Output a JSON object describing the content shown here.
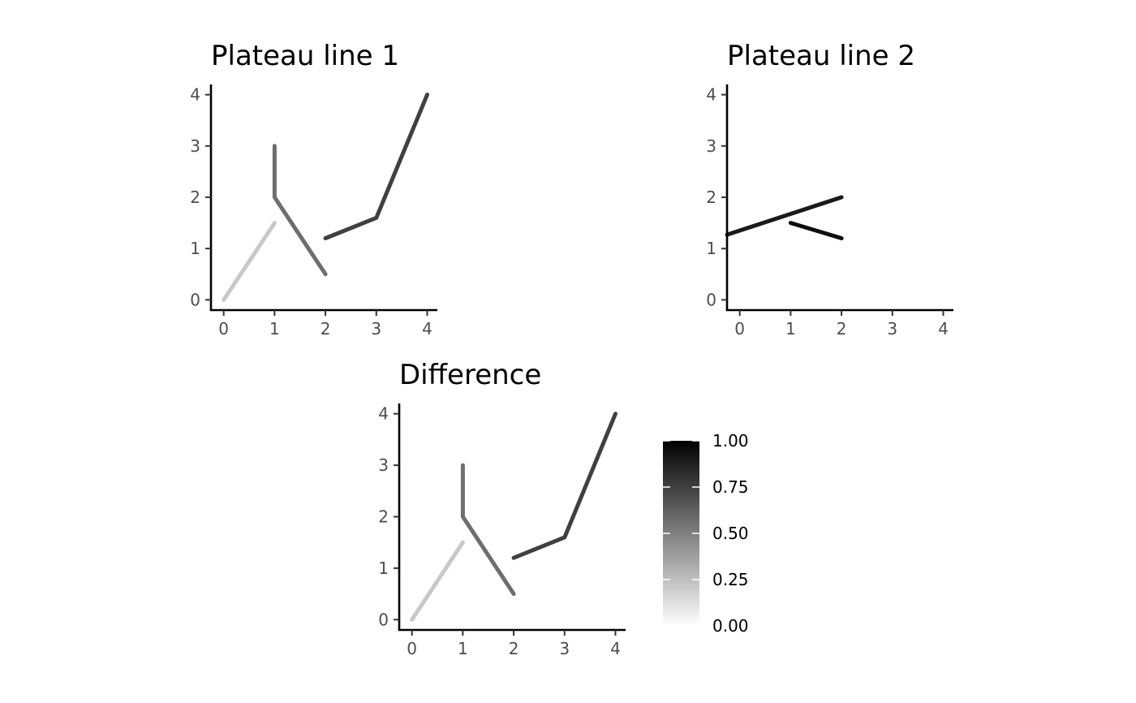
{
  "chart_data": [
    {
      "type": "line",
      "title": "Plateau line 1",
      "xlabel": "",
      "ylabel": "",
      "xlim": [
        -0.25,
        4.2
      ],
      "ylim": [
        -0.2,
        4.2
      ],
      "x_ticks": [
        "0",
        "1",
        "2",
        "3",
        "4"
      ],
      "y_ticks": [
        "0",
        "1",
        "2",
        "3",
        "4"
      ],
      "grid": false,
      "series": [
        {
          "value": 0.2,
          "color": "#c8c8c8",
          "points": [
            [
              0,
              0
            ],
            [
              1,
              1.5
            ]
          ]
        },
        {
          "value": 0.55,
          "color": "#6e6e6e",
          "points": [
            [
              1,
              3
            ],
            [
              1,
              2
            ],
            [
              2,
              0.5
            ]
          ]
        },
        {
          "value": 0.8,
          "color": "#404040",
          "points": [
            [
              2,
              1.2
            ],
            [
              3,
              1.6
            ],
            [
              4,
              4
            ]
          ]
        }
      ]
    },
    {
      "type": "line",
      "title": "Plateau line 2",
      "xlabel": "",
      "ylabel": "",
      "xlim": [
        -0.25,
        4.2
      ],
      "ylim": [
        -0.2,
        4.2
      ],
      "x_ticks": [
        "0",
        "1",
        "2",
        "3",
        "4"
      ],
      "y_ticks": [
        "0",
        "1",
        "2",
        "3",
        "4"
      ],
      "grid": false,
      "series": [
        {
          "value": 0.9,
          "color": "#1a1a1a",
          "points": [
            [
              -0.25,
              1.27
            ],
            [
              2,
              2
            ]
          ]
        },
        {
          "value": 1.0,
          "color": "#0d0d0d",
          "points": [
            [
              1,
              1.5
            ],
            [
              2,
              1.2
            ]
          ]
        }
      ]
    },
    {
      "type": "line",
      "title": "Difference",
      "xlabel": "",
      "ylabel": "",
      "xlim": [
        -0.25,
        4.2
      ],
      "ylim": [
        -0.2,
        4.2
      ],
      "x_ticks": [
        "0",
        "1",
        "2",
        "3",
        "4"
      ],
      "y_ticks": [
        "0",
        "1",
        "2",
        "3",
        "4"
      ],
      "grid": false,
      "series": [
        {
          "value": 0.2,
          "color": "#c8c8c8",
          "points": [
            [
              0,
              0
            ],
            [
              1,
              1.5
            ]
          ]
        },
        {
          "value": 0.55,
          "color": "#6e6e6e",
          "points": [
            [
              1,
              3
            ],
            [
              1,
              2
            ],
            [
              2,
              0.5
            ]
          ]
        },
        {
          "value": 0.8,
          "color": "#404040",
          "points": [
            [
              2,
              1.2
            ],
            [
              3,
              1.6
            ],
            [
              4,
              4
            ]
          ]
        }
      ]
    }
  ],
  "legend": {
    "labels": [
      "1.00",
      "0.75",
      "0.50",
      "0.25",
      "0.00"
    ],
    "stops": [
      1.0,
      0.75,
      0.5,
      0.25,
      0.0
    ],
    "low_color": "#ffffff",
    "high_color": "#000000"
  }
}
